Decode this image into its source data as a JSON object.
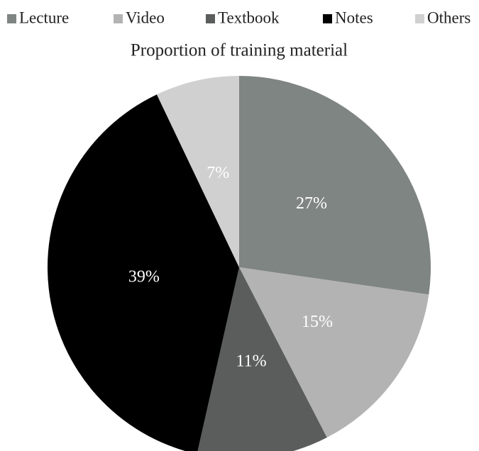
{
  "chart_data": {
    "type": "pie",
    "title": "Proportion of training material",
    "categories": [
      "Lecture",
      "Video",
      "Textbook",
      "Notes",
      "Others"
    ],
    "values": [
      27,
      15,
      11,
      39,
      7
    ],
    "value_labels": [
      "27%",
      "15%",
      "11%",
      "39%",
      "7%"
    ],
    "colors": [
      "#7f8582",
      "#b3b3b3",
      "#5a5d5b",
      "#000000",
      "#d0d0d0"
    ],
    "legend": "top"
  }
}
